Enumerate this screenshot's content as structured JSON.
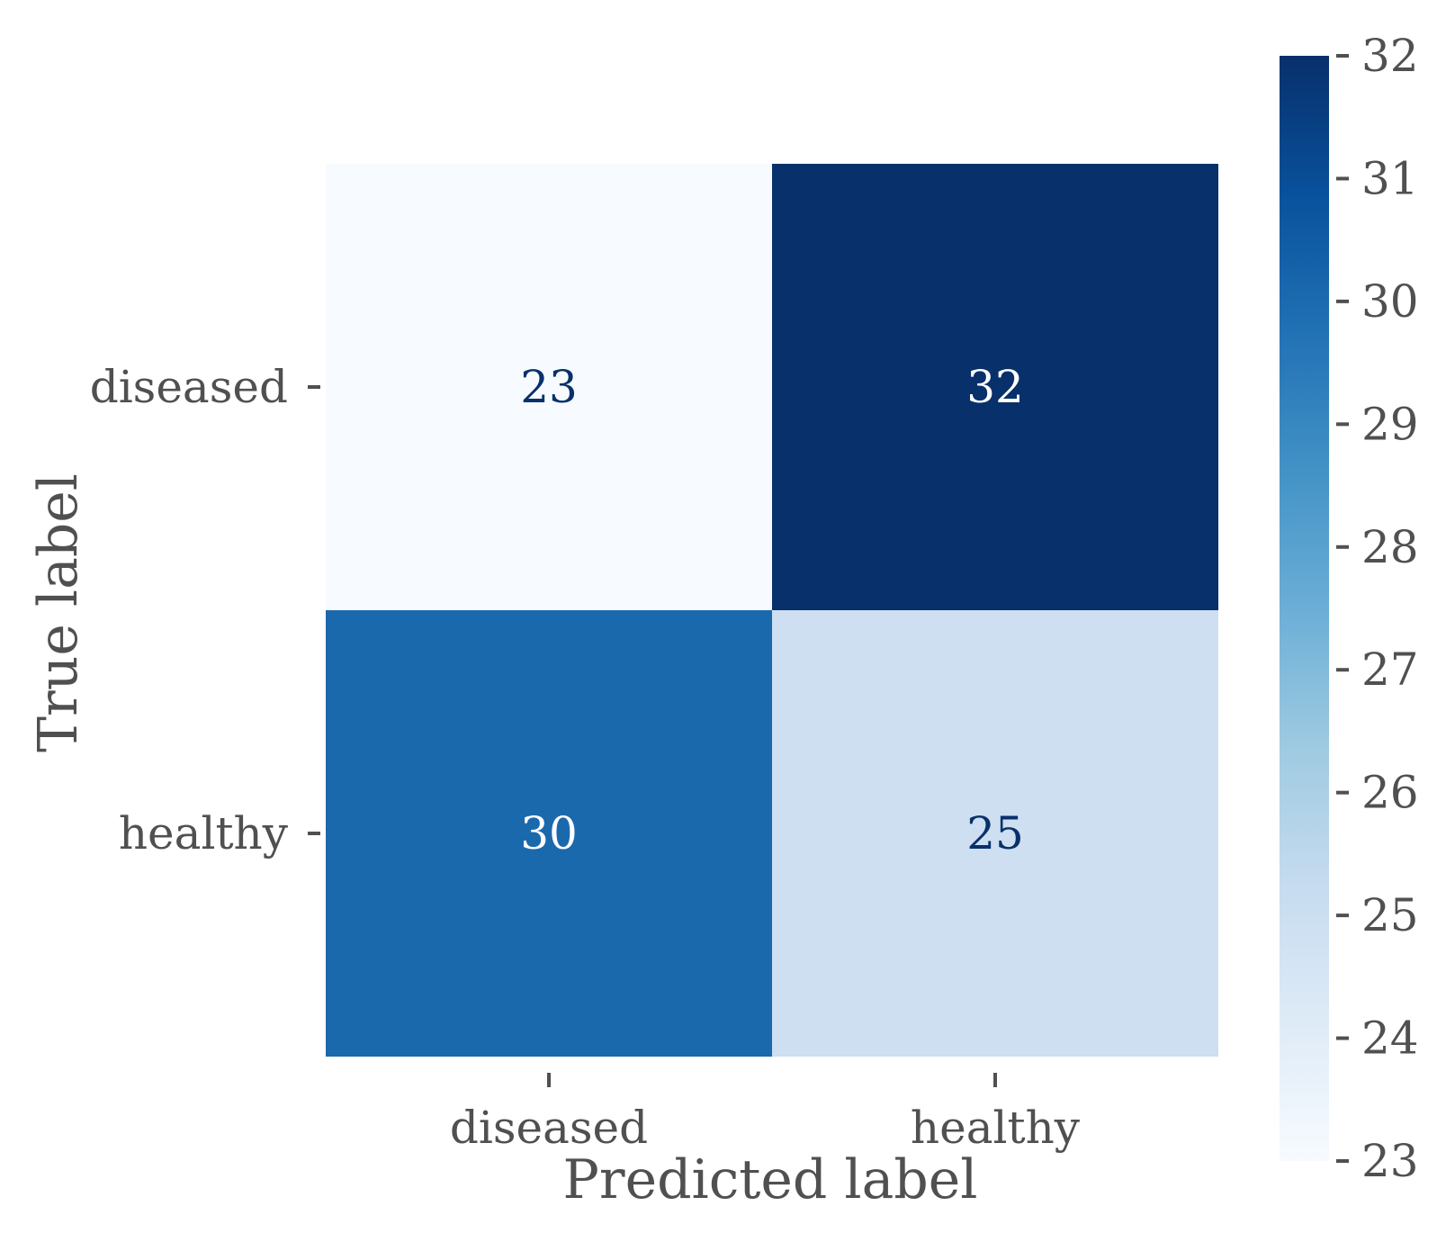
{
  "chart_data": {
    "type": "heatmap",
    "title": "",
    "xlabel": "Predicted label",
    "ylabel": "True label",
    "x_categories": [
      "diseased",
      "healthy"
    ],
    "y_categories": [
      "diseased",
      "healthy"
    ],
    "values": [
      [
        23,
        32
      ],
      [
        30,
        25
      ]
    ],
    "colormap": "Blues",
    "colorbar": {
      "range": [
        23,
        32
      ],
      "ticks": [
        "23",
        "24",
        "25",
        "26",
        "27",
        "28",
        "29",
        "30",
        "31",
        "32"
      ]
    },
    "grid": false,
    "cell_colors": {
      "23": "#f7fbff",
      "25": "#cddff0",
      "30": "#1b69ad",
      "32": "#08306b"
    },
    "text_colors": {
      "dark": "#08306b",
      "light": "#ffffff"
    },
    "colorbar_gradient": [
      "#f7fbff",
      "#deebf7",
      "#c6dbef",
      "#9ecae1",
      "#6baed6",
      "#4292c6",
      "#2171b5",
      "#08519c",
      "#08306b"
    ],
    "axis_text_color": "#505050"
  }
}
